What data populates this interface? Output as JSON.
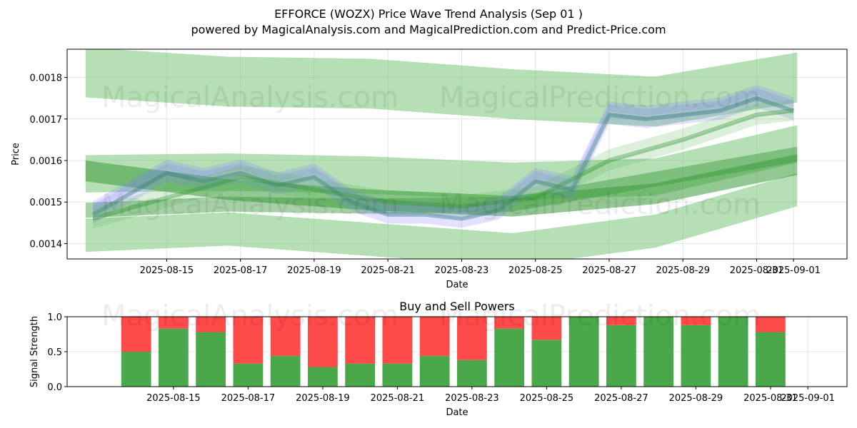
{
  "header": {
    "title": "EFFORCE (WOZX) Price Wave Trend Analysis (Sep 01 )",
    "subtitle": "powered by MagicalAnalysis.com and MagicalPrediction.com and Predict-Price.com"
  },
  "watermarks": [
    "MagicalAnalysis.com",
    "MagicalPrediction.com"
  ],
  "colors": {
    "band_green": "#5cb85c",
    "band_dark_green": "#3a9a3a",
    "wave_blue": "#7a7aff",
    "wave_teal": "#3d7a8a",
    "buy": "#4aa84a",
    "sell": "#ff4a4a"
  },
  "chart_data": [
    {
      "type": "line",
      "title": "",
      "xlabel": "Date",
      "ylabel": "Price",
      "x_ticks": [
        "2025-08-15",
        "2025-08-17",
        "2025-08-19",
        "2025-08-21",
        "2025-08-23",
        "2025-08-25",
        "2025-08-27",
        "2025-08-29",
        "2025-08-31",
        "2025-09-01"
      ],
      "y_ticks": [
        "0.0014",
        "0.0015",
        "0.0016",
        "0.0017",
        "0.0018"
      ],
      "ylim": [
        0.001363,
        0.001868
      ],
      "xlim": [
        "2025-08-12",
        "2025-09-02"
      ],
      "grid": true,
      "series": [
        {
          "x": [
            "2025-08-13",
            "2025-08-15",
            "2025-08-16",
            "2025-08-17",
            "2025-08-18",
            "2025-08-19",
            "2025-08-20",
            "2025-08-21",
            "2025-08-22",
            "2025-08-23",
            "2025-08-24",
            "2025-08-25",
            "2025-08-26",
            "2025-08-27",
            "2025-08-28",
            "2025-08-29",
            "2025-08-30",
            "2025-08-31",
            "2025-09-01"
          ],
          "values": [
            0.00147,
            0.00157,
            0.00155,
            0.00157,
            0.00154,
            0.00156,
            0.0015,
            0.00147,
            0.00147,
            0.00146,
            0.00148,
            0.00155,
            0.00153,
            0.00171,
            0.0017,
            0.00171,
            0.00172,
            0.00175,
            0.00172
          ]
        },
        {
          "x": [
            "2025-08-13",
            "2025-08-15",
            "2025-08-17",
            "2025-08-19",
            "2025-08-21",
            "2025-08-23",
            "2025-08-25",
            "2025-08-27",
            "2025-08-29",
            "2025-08-31",
            "2025-09-01"
          ],
          "values": [
            0.00146,
            0.00151,
            0.00156,
            0.00153,
            0.0015,
            0.00149,
            0.00151,
            0.0016,
            0.00165,
            0.00171,
            0.00172
          ]
        }
      ]
    },
    {
      "type": "bar",
      "title": "Buy and Sell Powers",
      "xlabel": "Date",
      "ylabel": "Signal Strength",
      "ylim": [
        0,
        1.0
      ],
      "y_ticks": [
        "0.0",
        "0.5",
        "1.0"
      ],
      "x_ticks": [
        "2025-08-15",
        "2025-08-17",
        "2025-08-19",
        "2025-08-21",
        "2025-08-23",
        "2025-08-25",
        "2025-08-27",
        "2025-08-29",
        "2025-08-31",
        "2025-09-01"
      ],
      "categories": [
        "2025-08-14",
        "2025-08-15",
        "2025-08-16",
        "2025-08-17",
        "2025-08-18",
        "2025-08-19",
        "2025-08-20",
        "2025-08-21",
        "2025-08-22",
        "2025-08-23",
        "2025-08-24",
        "2025-08-25",
        "2025-08-26",
        "2025-08-27",
        "2025-08-28",
        "2025-08-29",
        "2025-08-30",
        "2025-08-31"
      ],
      "series": [
        {
          "values": [
            0.5,
            0.83,
            0.78,
            0.33,
            0.44,
            0.28,
            0.33,
            0.33,
            0.44,
            0.38,
            0.83,
            0.67,
            1.0,
            0.88,
            1.0,
            0.88,
            1.0,
            0.78
          ]
        },
        {
          "values": [
            0.5,
            0.17,
            0.22,
            0.67,
            0.56,
            0.72,
            0.67,
            0.67,
            0.56,
            0.62,
            0.17,
            0.33,
            0.0,
            0.12,
            0.0,
            0.12,
            0.0,
            0.22
          ]
        }
      ]
    }
  ]
}
